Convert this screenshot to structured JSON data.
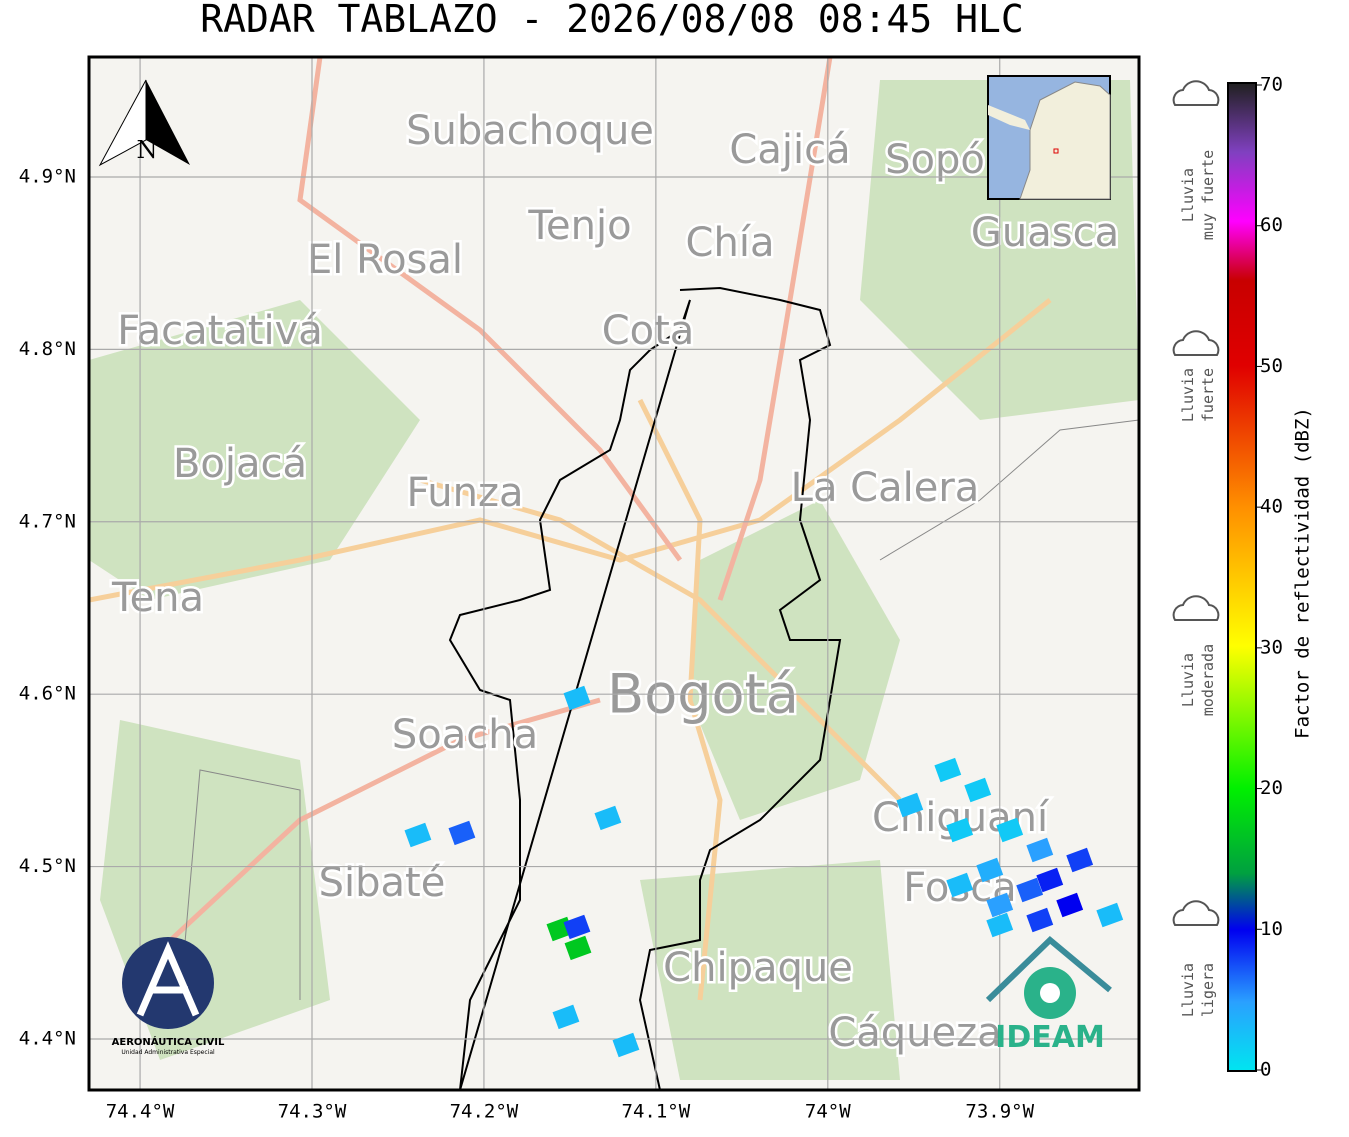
{
  "title": "RADAR TABLAZO - 2026/08/08 08:45 HLC",
  "map": {
    "xlim": [
      -74.4297,
      -73.819
    ],
    "ylim": [
      4.3704,
      4.9696
    ],
    "grid": true,
    "xticks": [
      {
        "value": -74.4,
        "label": "74.4°W"
      },
      {
        "value": -74.3,
        "label": "74.3°W"
      },
      {
        "value": -74.2,
        "label": "74.2°W"
      },
      {
        "value": -74.1,
        "label": "74.1°W"
      },
      {
        "value": -74.0,
        "label": "74°W"
      },
      {
        "value": -73.9,
        "label": "73.9°W"
      }
    ],
    "yticks": [
      {
        "value": 4.9,
        "label": "4.9°N"
      },
      {
        "value": 4.8,
        "label": "4.8°N"
      },
      {
        "value": 4.7,
        "label": "4.7°N"
      },
      {
        "value": 4.6,
        "label": "4.6°N"
      },
      {
        "value": 4.5,
        "label": "4.5°N"
      },
      {
        "value": 4.4,
        "label": "4.4°N"
      }
    ],
    "places": [
      "Subachoque",
      "Cajicá",
      "Sopó",
      "Tenjo",
      "Chía",
      "Guasca",
      "El Rosal",
      "Facatativá",
      "Cota",
      "Bojacá",
      "Funza",
      "La Calera",
      "Tena",
      "Soacha",
      "Bogotá",
      "Sibaté",
      "Chipaque",
      "Cáqueza",
      "Chiguaní",
      "Fosca"
    ],
    "north": "N",
    "echoes": {
      "lon": [
        -74.1459,
        -74.2384,
        -74.2128,
        -74.1279,
        -74.1558,
        -74.1459,
        -74.1453,
        -74.1523,
        -74.1174,
        -73.9302,
        -73.9128,
        -73.9523,
        -73.9233,
        -73.8942,
        -73.8767,
        -73.8535,
        -73.9058,
        -73.8709,
        -73.8826,
        -73.8593,
        -73.9233,
        -73.9,
        -73.8767,
        -73.836,
        -73.9
      ],
      "lat": [
        4.5978,
        4.5183,
        4.5195,
        4.5282,
        4.4638,
        4.465,
        4.4528,
        4.4128,
        4.3965,
        4.556,
        4.5444,
        4.5357,
        4.5212,
        4.5212,
        4.5096,
        4.5038,
        4.498,
        4.4922,
        4.4864,
        4.4777,
        4.4893,
        4.4777,
        4.469,
        4.4719,
        4.4661
      ],
      "values": [
        3,
        3,
        7,
        3,
        17,
        8,
        17,
        3,
        3,
        2,
        2,
        3,
        2,
        2,
        5,
        8,
        4,
        9,
        7,
        10,
        3,
        5,
        8,
        3,
        3
      ]
    }
  },
  "colorbar": {
    "label": "Factor de reflectividad (dBZ)",
    "lim": [
      0,
      70
    ],
    "ticks": [
      0,
      10,
      20,
      30,
      40,
      50,
      60,
      70
    ]
  },
  "intensity_labels": [
    [
      "Lluvia",
      "muy fuerte"
    ],
    [
      "Lluvia",
      "fuerte"
    ],
    [
      "Lluvia",
      "moderada"
    ],
    [
      "Lluvia",
      "ligera"
    ]
  ],
  "logos": {
    "aerocivil": "AERONÁUTICA CIVIL",
    "aerocivil_sub": "Unidad Administrativa Especial",
    "ideam": "IDEAM"
  }
}
